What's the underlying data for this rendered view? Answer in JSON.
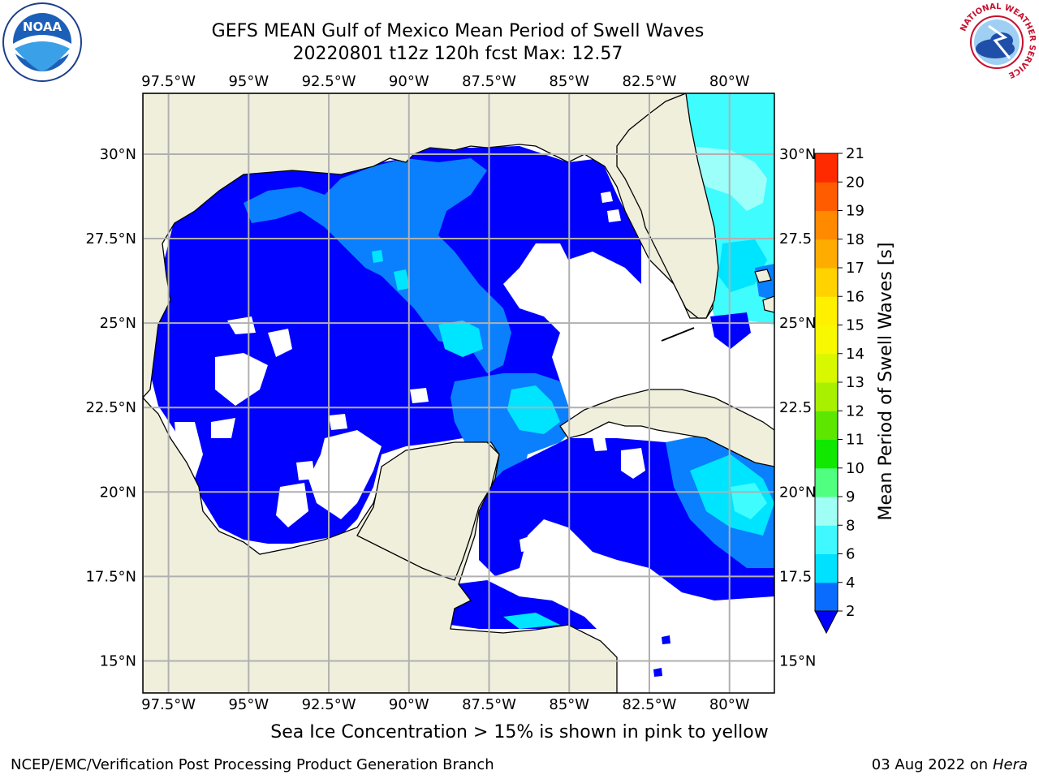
{
  "header": {
    "title_line1": "GEFS MEAN Gulf of Mexico Mean Period of Swell Waves",
    "title_line2": "20220801 t12z 120h fcst   Max: 12.57"
  },
  "logos": {
    "left": "noara-logo",
    "right": "national-weather-service-logo",
    "nws_ring_text": "NATIONAL WEATHER SERVICE"
  },
  "map": {
    "lon_labels": [
      "97.5°W",
      "95°W",
      "92.5°W",
      "90°W",
      "87.5°W",
      "85°W",
      "82.5°W",
      "80°W"
    ],
    "lat_labels_left": [
      "30°N",
      "27.5°N",
      "25°N",
      "22.5°N",
      "20°N",
      "17.5°N",
      "15°N"
    ],
    "lat_labels_right": [
      "30°N",
      "27.5",
      "25°N",
      "22.5",
      "20°N",
      "17.5",
      "15°N"
    ],
    "colors": {
      "land": "#efefdc",
      "ocean_low": "#ffffff",
      "band_2_4": "#0000ff",
      "band_4_6": "#0a80ff",
      "band_6_8": "#00e5ff",
      "band_8_9": "#3ffcff",
      "band_9_10": "#9dfff9",
      "band_10_11": "#37ff70",
      "band_11_12": "#33e800",
      "band_12_13": "#5ce600",
      "band_13_14": "#a8f000",
      "grid": "#b0b0b0"
    }
  },
  "colorbar": {
    "label": "Mean Period of Swell Waves [s]",
    "ticks": [
      "2",
      "4",
      "6",
      "8",
      "9",
      "10",
      "11",
      "12",
      "13",
      "14",
      "15",
      "16",
      "17",
      "18",
      "19",
      "20",
      "21"
    ],
    "colors": [
      "#0a6cff",
      "#00e0ff",
      "#40f8ff",
      "#a0fff4",
      "#50ff80",
      "#10e800",
      "#5ce600",
      "#a8f000",
      "#d8f800",
      "#f8f800",
      "#fff000",
      "#ffd200",
      "#ffac00",
      "#ff8a00",
      "#ff5c00",
      "#ff2a00",
      "#f20000"
    ],
    "extend_color": "#0000ff"
  },
  "footer": {
    "ice_note": "Sea Ice Concentration > 15% is shown in pink to yellow",
    "left": "NCEP/EMC/Verification Post Processing Product Generation Branch",
    "date": "03 Aug 2022 on",
    "host": "Hera"
  }
}
